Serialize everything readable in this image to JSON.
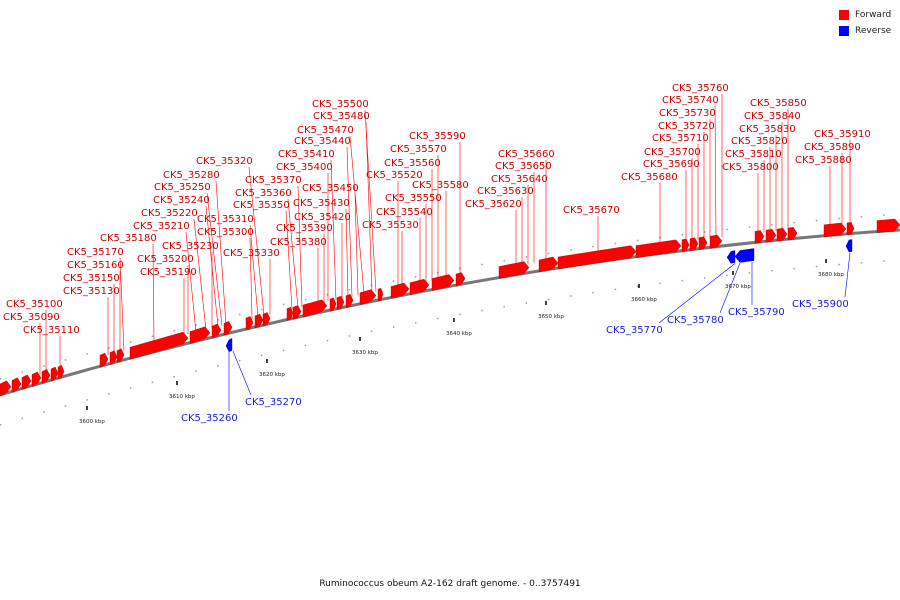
{
  "legend": {
    "forward_label": "Forward",
    "reverse_label": "Reverse",
    "forward_color": "#ff0000",
    "reverse_color": "#0000ff"
  },
  "caption": "Ruminococcus obeum A2-162 draft genome. - 0..3757491",
  "ticks": [
    "3600 kbp",
    "3610 kbp",
    "3620 kbp",
    "3630 kbp",
    "3640 kbp",
    "3650 kbp",
    "3660 kbp",
    "3670 kbp",
    "3680 kbp"
  ],
  "forward_labels": [
    "CK5_35090",
    "CK5_35100",
    "CK5_35110",
    "CK5_35130",
    "CK5_35150",
    "CK5_35160",
    "CK5_35170",
    "CK5_35180",
    "CK5_35190",
    "CK5_35200",
    "CK5_35210",
    "CK5_35220",
    "CK5_35230",
    "CK5_35240",
    "CK5_35250",
    "CK5_35280",
    "CK5_35300",
    "CK5_35310",
    "CK5_35320",
    "CK5_35330",
    "CK5_35350",
    "CK5_35360",
    "CK5_35370",
    "CK5_35380",
    "CK5_35390",
    "CK5_35400",
    "CK5_35410",
    "CK5_35420",
    "CK5_35430",
    "CK5_35440",
    "CK5_35450",
    "CK5_35470",
    "CK5_35480",
    "CK5_35500",
    "CK5_35520",
    "CK5_35530",
    "CK5_35540",
    "CK5_35550",
    "CK5_35560",
    "CK5_35570",
    "CK5_35580",
    "CK5_35590",
    "CK5_35620",
    "CK5_35630",
    "CK5_35640",
    "CK5_35650",
    "CK5_35660",
    "CK5_35670",
    "CK5_35680",
    "CK5_35690",
    "CK5_35700",
    "CK5_35710",
    "CK5_35720",
    "CK5_35730",
    "CK5_35740",
    "CK5_35760",
    "CK5_35800",
    "CK5_35810",
    "CK5_35820",
    "CK5_35830",
    "CK5_35840",
    "CK5_35850",
    "CK5_35880",
    "CK5_35890",
    "CK5_35910"
  ],
  "reverse_labels": [
    "CK5_35260",
    "CK5_35270",
    "CK5_35770",
    "CK5_35780",
    "CK5_35790",
    "CK5_35900"
  ]
}
